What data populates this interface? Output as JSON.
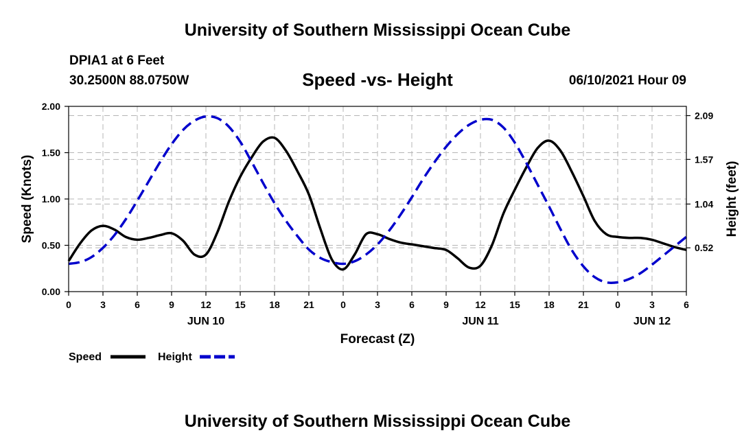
{
  "header": {
    "title": "University of Southern Mississippi Ocean Cube",
    "station": "DPIA1 at 6 Feet",
    "coords": "30.2500N  88.0750W",
    "forecast_time": "06/10/2021 Hour 09"
  },
  "footer": {
    "title": "University of Southern Mississippi Ocean Cube"
  },
  "chart_data": {
    "type": "line",
    "title": "Speed -vs- Height",
    "xlabel": "Forecast (Z)",
    "ylabel": "Speed (Knots)",
    "y2label": "Height (feet)",
    "xlim": [
      0,
      54
    ],
    "ylim": [
      0,
      2
    ],
    "y2lim": [
      0,
      2.2
    ],
    "x_ticks": [
      0,
      3,
      6,
      9,
      12,
      15,
      18,
      21,
      24,
      27,
      30,
      33,
      36,
      39,
      42,
      45,
      48,
      51,
      54
    ],
    "x_tick_labels": [
      "0",
      "3",
      "6",
      "9",
      "12",
      "15",
      "18",
      "21",
      "0",
      "3",
      "6",
      "9",
      "12",
      "15",
      "18",
      "21",
      "0",
      "3",
      "6"
    ],
    "y_ticks": [
      "0.00",
      "0.50",
      "1.00",
      "1.50",
      "2.00"
    ],
    "y2_ticks": [
      "0.52",
      "1.04",
      "1.57",
      "2.09"
    ],
    "day_labels": [
      {
        "x": 12,
        "label": "JUN 10"
      },
      {
        "x": 36,
        "label": "JUN 11"
      },
      {
        "x": 51,
        "label": "JUN 12"
      }
    ],
    "grid": true,
    "legend_position": "bottom-left",
    "series": [
      {
        "name": "Speed",
        "axis": "left",
        "color": "#000000",
        "style": "solid",
        "x": [
          0,
          1,
          2,
          3,
          4,
          5,
          6,
          7,
          8,
          9,
          10,
          11,
          12,
          13,
          14,
          15,
          16,
          17,
          18,
          19,
          20,
          21,
          22,
          23,
          24,
          25,
          26,
          27,
          28,
          29,
          30,
          31,
          32,
          33,
          34,
          35,
          36,
          37,
          38,
          39,
          40,
          41,
          42,
          43,
          44,
          45,
          46,
          47,
          48,
          49,
          50,
          51,
          52,
          53,
          54
        ],
        "values": [
          0.33,
          0.52,
          0.66,
          0.71,
          0.67,
          0.59,
          0.56,
          0.58,
          0.61,
          0.63,
          0.55,
          0.4,
          0.4,
          0.64,
          0.97,
          1.24,
          1.45,
          1.62,
          1.66,
          1.52,
          1.3,
          1.05,
          0.68,
          0.35,
          0.24,
          0.4,
          0.62,
          0.62,
          0.57,
          0.53,
          0.51,
          0.49,
          0.47,
          0.45,
          0.36,
          0.26,
          0.28,
          0.5,
          0.84,
          1.1,
          1.34,
          1.55,
          1.63,
          1.52,
          1.29,
          1.03,
          0.76,
          0.62,
          0.59,
          0.58,
          0.58,
          0.56,
          0.52,
          0.48,
          0.45
        ]
      },
      {
        "name": "Height",
        "axis": "right",
        "color": "#0000cc",
        "style": "dashed",
        "x": [
          0,
          1,
          2,
          3,
          4,
          5,
          6,
          7,
          8,
          9,
          10,
          11,
          12,
          13,
          14,
          15,
          16,
          17,
          18,
          19,
          20,
          21,
          22,
          23,
          24,
          25,
          26,
          27,
          28,
          29,
          30,
          31,
          32,
          33,
          34,
          35,
          36,
          37,
          38,
          39,
          40,
          41,
          42,
          43,
          44,
          45,
          46,
          47,
          48,
          49,
          50,
          51,
          52,
          53,
          54
        ],
        "values": [
          0.33,
          0.35,
          0.41,
          0.52,
          0.67,
          0.86,
          1.08,
          1.31,
          1.54,
          1.75,
          1.92,
          2.03,
          2.08,
          2.06,
          1.96,
          1.78,
          1.54,
          1.29,
          1.05,
          0.84,
          0.66,
          0.5,
          0.4,
          0.35,
          0.33,
          0.36,
          0.44,
          0.56,
          0.72,
          0.91,
          1.12,
          1.34,
          1.54,
          1.72,
          1.87,
          1.98,
          2.04,
          2.04,
          1.95,
          1.77,
          1.53,
          1.27,
          1.01,
          0.74,
          0.49,
          0.3,
          0.17,
          0.11,
          0.11,
          0.15,
          0.22,
          0.32,
          0.43,
          0.54,
          0.65
        ]
      }
    ]
  }
}
